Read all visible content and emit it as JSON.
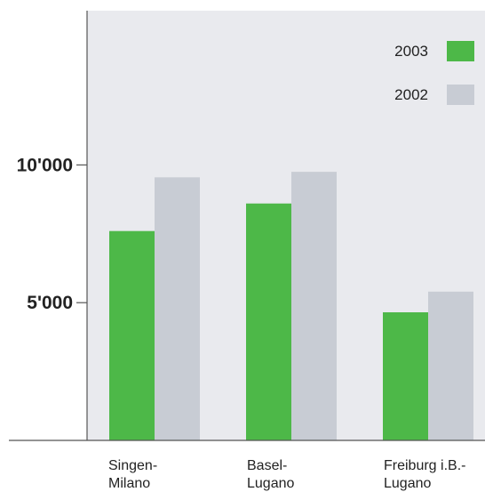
{
  "chart_data": {
    "type": "bar",
    "categories": [
      [
        "Singen-",
        "Milano"
      ],
      [
        "Basel-",
        "Lugano"
      ],
      [
        "Freiburg i.B.-",
        "Lugano"
      ]
    ],
    "series": [
      {
        "name": "2003",
        "color": "#4db848",
        "values": [
          7600,
          8600,
          4650
        ]
      },
      {
        "name": "2002",
        "color": "#c8ccd4",
        "values": [
          9550,
          9750,
          5400
        ]
      }
    ],
    "yticks": [
      {
        "value": 5000,
        "label": "5'000"
      },
      {
        "value": 10000,
        "label": "10'000"
      }
    ],
    "ylim": [
      0,
      15600
    ],
    "legend_position": "top-right",
    "plot_background": "#e9eaee",
    "axis_color": "#555555"
  }
}
